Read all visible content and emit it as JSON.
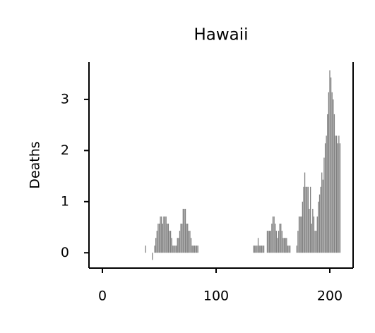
{
  "chart_data": {
    "type": "bar",
    "title": "Hawaii",
    "y_label": "Deaths",
    "color": "#808080",
    "x": [
      38,
      39,
      40,
      41,
      42,
      43,
      44,
      45,
      46,
      47,
      48,
      49,
      50,
      51,
      52,
      53,
      54,
      55,
      56,
      57,
      58,
      59,
      60,
      61,
      62,
      63,
      64,
      65,
      66,
      67,
      68,
      69,
      70,
      71,
      72,
      73,
      74,
      75,
      76,
      77,
      78,
      79,
      80,
      81,
      82,
      83,
      84,
      85,
      86,
      87,
      88,
      89,
      90,
      91,
      92,
      93,
      94,
      95,
      96,
      97,
      98,
      99,
      100,
      101,
      102,
      103,
      104,
      105,
      106,
      107,
      108,
      109,
      110,
      111,
      112,
      113,
      114,
      115,
      116,
      117,
      118,
      119,
      120,
      121,
      122,
      123,
      124,
      125,
      126,
      127,
      128,
      129,
      130,
      131,
      132,
      133,
      134,
      135,
      136,
      137,
      138,
      139,
      140,
      141,
      142,
      143,
      144,
      145,
      146,
      147,
      148,
      149,
      150,
      151,
      152,
      153,
      154,
      155,
      156,
      157,
      158,
      159,
      160,
      161,
      162,
      163,
      164,
      165,
      166,
      167,
      168,
      169,
      170,
      171,
      172,
      173,
      174,
      175,
      176,
      177,
      178,
      179,
      180,
      181,
      182,
      183,
      184,
      185,
      186,
      187,
      188,
      189,
      190,
      191,
      192,
      193,
      194,
      195,
      196,
      197,
      198,
      199,
      200,
      201,
      202,
      203,
      204,
      205,
      206,
      207,
      208,
      209
    ],
    "values": [
      0.14,
      0,
      0,
      0,
      0,
      0,
      -0.14,
      0,
      0.14,
      0.29,
      0.43,
      0.57,
      0.57,
      0.71,
      0.71,
      0.57,
      0.71,
      0.71,
      0.71,
      0.57,
      0.57,
      0.43,
      0.43,
      0.29,
      0.14,
      0.14,
      0.14,
      0.14,
      0.29,
      0.29,
      0.43,
      0.57,
      0.57,
      0.86,
      0.86,
      0.86,
      0.57,
      0.57,
      0.43,
      0.43,
      0.29,
      0.14,
      0.14,
      0.14,
      0.14,
      0.14,
      0.14,
      0,
      0,
      0,
      0,
      0,
      0,
      0,
      0,
      0,
      0,
      0,
      0,
      0,
      0,
      0,
      0,
      0,
      0,
      0,
      0,
      0,
      0,
      0,
      0,
      0,
      0,
      0,
      0,
      0,
      0,
      0,
      0,
      0,
      0,
      0,
      0,
      0,
      0,
      0,
      0,
      0,
      0,
      0,
      0,
      0,
      0,
      0,
      0,
      0.14,
      0.14,
      0.14,
      0.14,
      0.29,
      0.14,
      0.14,
      0.14,
      0.14,
      0.14,
      0,
      0,
      0.43,
      0.43,
      0.43,
      0.43,
      0.57,
      0.71,
      0.71,
      0.57,
      0.43,
      0.29,
      0.43,
      0.57,
      0.57,
      0.43,
      0.29,
      0.29,
      0.29,
      0.29,
      0.14,
      0.14,
      0.14,
      0,
      0,
      0,
      0,
      0,
      0.14,
      0.43,
      0.71,
      0.71,
      0.71,
      1.0,
      1.29,
      1.57,
      1.29,
      1.29,
      1.29,
      0.86,
      1.29,
      0.57,
      0.86,
      0.71,
      0.43,
      0.43,
      0.71,
      1.0,
      1.14,
      1.29,
      1.57,
      1.43,
      1.86,
      2.14,
      2.29,
      2.71,
      3.14,
      3.57,
      3.43,
      3.14,
      3.0,
      2.71,
      2.29,
      2.29,
      2.14,
      2.29,
      2.14
    ],
    "xlim": [
      -11.8,
      220.5
    ],
    "xticks": [
      0,
      100,
      200
    ],
    "ylim": [
      -0.3,
      3.73
    ],
    "yticks": [
      0,
      1,
      2,
      3
    ],
    "grid": false
  }
}
